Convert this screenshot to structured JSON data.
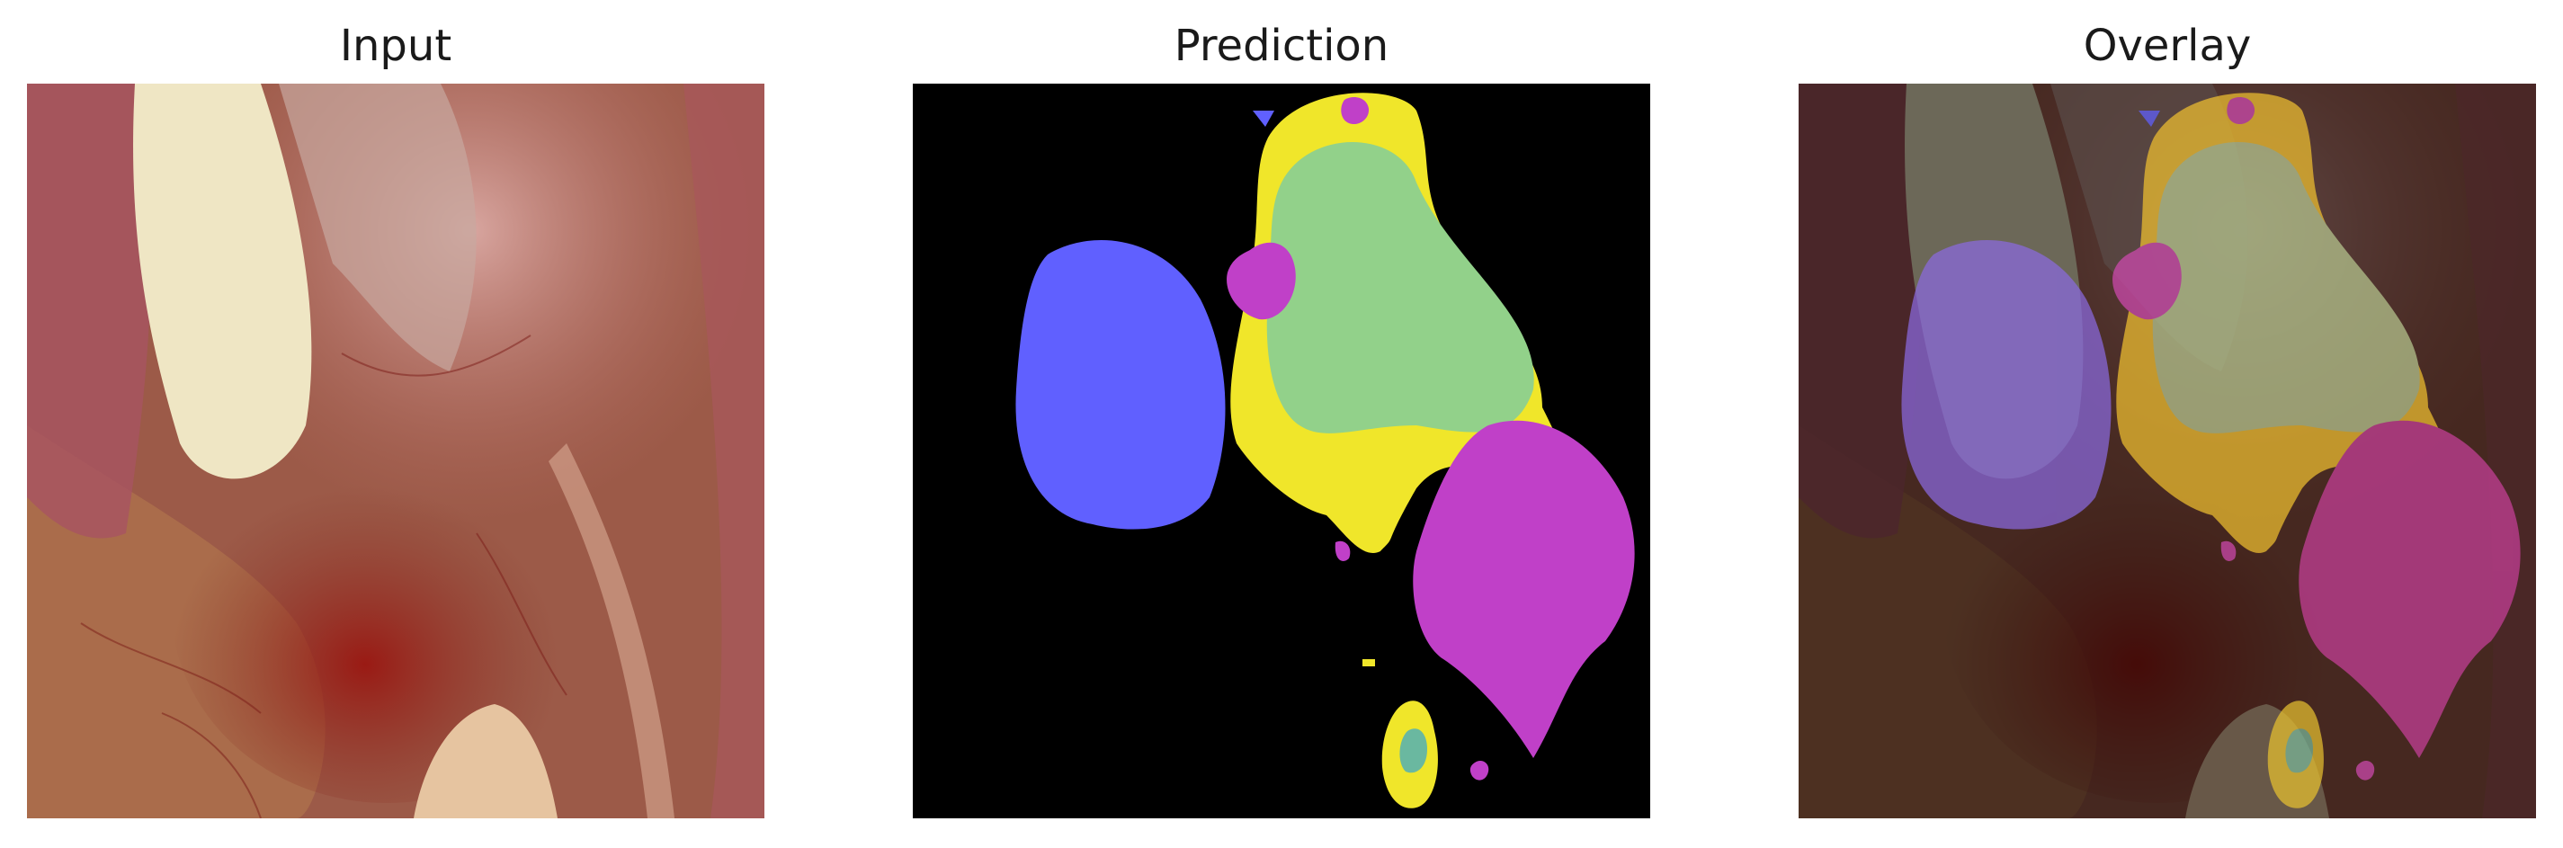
{
  "panels": [
    {
      "title": "Input"
    },
    {
      "title": "Prediction"
    },
    {
      "title": "Overlay"
    }
  ],
  "colors": {
    "background": "#000000",
    "class_blue": "#6060ff",
    "class_magenta": "#c040c8",
    "class_yellow": "#f0e62a",
    "class_green": "#92d18a",
    "class_teal": "#6ab8a0",
    "tissue_red": "#8a2a22",
    "tissue_pink": "#c8787a",
    "tissue_cream": "#efe6c4"
  },
  "overlay": {
    "mask_opacity": 0.55,
    "image_dim": 0.45
  }
}
